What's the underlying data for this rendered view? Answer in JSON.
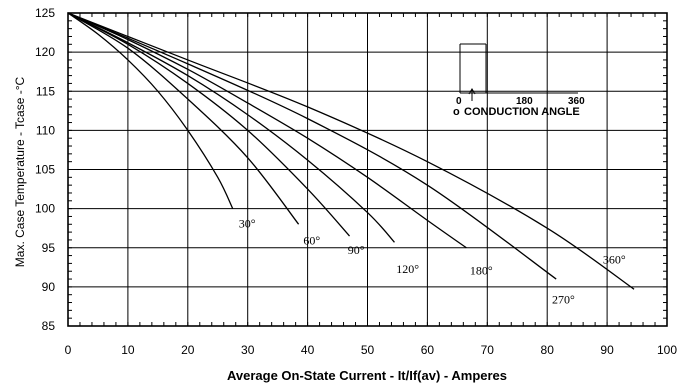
{
  "chart_data": {
    "type": "line",
    "xlabel": "Average On-State Current - It/If(av) - Amperes",
    "ylabel": "Max. Case Temperature - Tcase -°C",
    "xlim": [
      0,
      100
    ],
    "ylim": [
      85,
      125
    ],
    "x_ticks": [
      "0",
      "10",
      "20",
      "30",
      "40",
      "50",
      "60",
      "70",
      "80",
      "90",
      "100"
    ],
    "y_ticks": [
      "85",
      "90",
      "95",
      "100",
      "105",
      "110",
      "115",
      "120",
      "125"
    ],
    "grid": true,
    "series": [
      {
        "name": "30°",
        "x": [
          0,
          5,
          10,
          15,
          20,
          25,
          27.5
        ],
        "y": [
          125,
          122.3,
          119,
          115,
          110,
          104,
          100
        ]
      },
      {
        "name": "60°",
        "x": [
          0,
          10,
          20,
          30,
          38.5
        ],
        "y": [
          125,
          120.5,
          114,
          106.5,
          98
        ]
      },
      {
        "name": "90°",
        "x": [
          0,
          10,
          20,
          30,
          40,
          47
        ],
        "y": [
          125,
          121,
          116,
          110,
          102.5,
          96.5
        ]
      },
      {
        "name": "120°",
        "x": [
          0,
          10,
          20,
          30,
          40,
          50,
          54.5
        ],
        "y": [
          125,
          121.2,
          117,
          112,
          106.2,
          99.5,
          95.7
        ]
      },
      {
        "name": "180°",
        "x": [
          0,
          10,
          20,
          30,
          40,
          50,
          60,
          66.5
        ],
        "y": [
          125,
          121.6,
          117.8,
          113.5,
          109,
          104,
          98.5,
          95
        ]
      },
      {
        "name": "270°",
        "x": [
          0,
          20,
          40,
          60,
          81.5
        ],
        "y": [
          125,
          118.5,
          111.5,
          103,
          91
        ]
      },
      {
        "name": "360°",
        "x": [
          0,
          20,
          40,
          60,
          80,
          94.5
        ],
        "y": [
          125,
          119,
          113,
          106,
          97.5,
          89.7
        ]
      }
    ],
    "series_labels": [
      {
        "text": "30°",
        "x": 28.5,
        "y": 97.6
      },
      {
        "text": "60°",
        "x": 39.3,
        "y": 95.4
      },
      {
        "text": "90°",
        "x": 46.7,
        "y": 94.2
      },
      {
        "text": "120°",
        "x": 54.8,
        "y": 91.8
      },
      {
        "text": "180°",
        "x": 67.1,
        "y": 91.6
      },
      {
        "text": "270°",
        "x": 80.8,
        "y": 87.9
      },
      {
        "text": "360°",
        "x": 89.3,
        "y": 93.0
      }
    ],
    "inset": {
      "ticks": [
        "0",
        "180",
        "360"
      ],
      "label": "CONDUCTION ANGLE",
      "marker": "o"
    }
  }
}
